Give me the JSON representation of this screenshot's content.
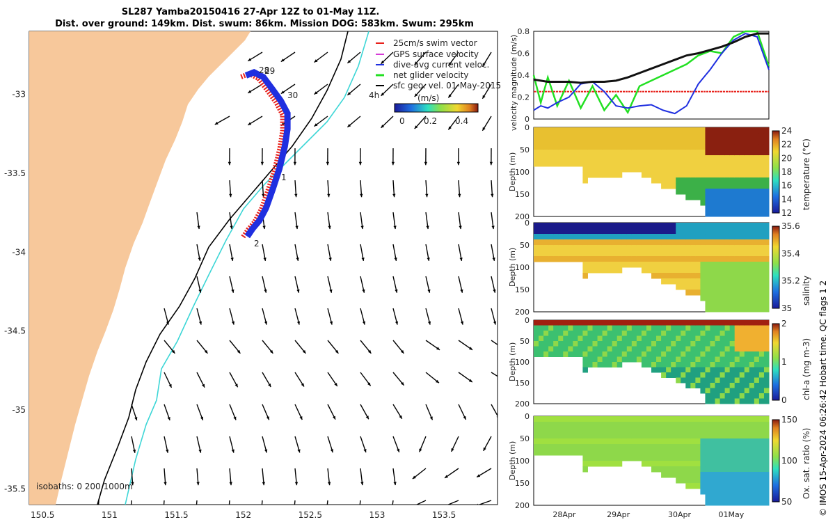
{
  "title_line1": "SL287 Yamba20150416 27-Apr 12Z to 01-May 11Z.",
  "title_line2": "Dist. over ground: 149km. Dist. swum: 86km. Mission DOG: 583km. Swum: 295km",
  "side_note": "© IMOS 15-Apr-2024 06:26:42 Hobart time. QC flags 1  2",
  "colors": {
    "land": "#f7c89b",
    "swim_vector": "#e8201a",
    "gps_velocity": "#d63ad6",
    "dive_current": "#1f2fe0",
    "net_velocity": "#22e022",
    "isobath_200": "#000000",
    "isobath_1000": "#3cd6d6"
  },
  "chart_data": [
    {
      "type": "map",
      "title": "SL287 Yamba20150416 27-Apr 12Z to 01-May 11Z.",
      "xlim": [
        150.4,
        153.9
      ],
      "ylim": [
        -35.6,
        -32.6
      ],
      "xticks": [
        "150.5",
        "151",
        "151.5",
        "152",
        "152.5",
        "153",
        "153.5"
      ],
      "yticks": [
        "-33",
        "-33.5",
        "-34",
        "-34.5",
        "-35",
        "-35.5"
      ],
      "legend": [
        "25cm/s swim vector",
        "GPS surface velocity",
        "dive-avg current veloc.",
        "net glider velocity",
        "sfc geo. vel. 01-May-2015"
      ],
      "colorbar": {
        "label": "(m/s)",
        "ticks": [
          "0",
          "0.2",
          "0.4"
        ]
      },
      "isobaths_label": "isobaths: 0   200  1000m",
      "track_labels": [
        "28",
        "29",
        "30",
        "1",
        "2"
      ],
      "scale_label": "4h",
      "track": {
        "lon": [
          152.02,
          152.08,
          152.15,
          152.22,
          152.28,
          152.33,
          152.33,
          152.31,
          152.27,
          152.22,
          152.17,
          152.12,
          152.07,
          152.03
        ],
        "lat": [
          -32.88,
          -32.86,
          -32.89,
          -32.97,
          -33.04,
          -33.12,
          -33.22,
          -33.33,
          -33.47,
          -33.6,
          -33.72,
          -33.8,
          -33.85,
          -33.9
        ]
      }
    },
    {
      "type": "line",
      "ylabel": "velocity magnitude (m/s)",
      "ylim": [
        0,
        0.8
      ],
      "yticks": [
        "0",
        "0.2",
        "0.4",
        "0.6",
        "0.8"
      ],
      "x": [
        0,
        0.03,
        0.06,
        0.1,
        0.15,
        0.2,
        0.25,
        0.3,
        0.35,
        0.4,
        0.45,
        0.5,
        0.55,
        0.6,
        0.65,
        0.7,
        0.75,
        0.8,
        0.85,
        0.9,
        0.95,
        1.0
      ],
      "series": [
        {
          "name": "swim",
          "values": [
            0.25,
            0.25,
            0.25,
            0.25,
            0.25,
            0.25,
            0.25,
            0.25,
            0.25,
            0.25,
            0.25,
            0.25,
            0.25,
            0.25,
            0.25,
            0.25,
            0.25,
            0.25,
            0.25,
            0.25,
            0.25,
            0.25
          ]
        },
        {
          "name": "net",
          "values": [
            0.4,
            0.15,
            0.38,
            0.12,
            0.35,
            0.1,
            0.3,
            0.08,
            0.22,
            0.06,
            0.3,
            0.35,
            0.4,
            0.45,
            0.5,
            0.58,
            0.62,
            0.6,
            0.75,
            0.8,
            0.8,
            0.48
          ]
        },
        {
          "name": "current",
          "values": [
            0.08,
            0.12,
            0.1,
            0.15,
            0.2,
            0.32,
            0.34,
            0.25,
            0.12,
            0.1,
            0.12,
            0.13,
            0.08,
            0.05,
            0.12,
            0.32,
            0.45,
            0.6,
            0.72,
            0.78,
            0.75,
            0.45
          ]
        },
        {
          "name": "geo",
          "values": [
            0.36,
            0.35,
            0.34,
            0.34,
            0.34,
            0.33,
            0.34,
            0.34,
            0.35,
            0.38,
            0.42,
            0.46,
            0.5,
            0.54,
            0.58,
            0.6,
            0.63,
            0.66,
            0.7,
            0.75,
            0.78,
            0.78
          ]
        }
      ]
    },
    {
      "type": "heatmap",
      "ylabel": "Depth (m)",
      "yticks": [
        "0",
        "50",
        "100",
        "150",
        "200"
      ],
      "colorbar_label": "temperature (°C)",
      "colorbar_ticks": [
        "12",
        "14",
        "16",
        "18",
        "20",
        "22",
        "24"
      ]
    },
    {
      "type": "heatmap",
      "ylabel": "Depth (m)",
      "yticks": [
        "0",
        "50",
        "100",
        "150",
        "200"
      ],
      "colorbar_label": "salinity",
      "colorbar_ticks": [
        "35",
        "35.2",
        "35.4",
        "35.6"
      ]
    },
    {
      "type": "heatmap",
      "ylabel": "Depth (m)",
      "yticks": [
        "0",
        "50",
        "100",
        "150",
        "200"
      ],
      "colorbar_label": "chl-a (mg m-3)",
      "colorbar_ticks": [
        "0",
        "1",
        "2"
      ]
    },
    {
      "type": "heatmap",
      "ylabel": "Depth (m)",
      "yticks": [
        "0",
        "50",
        "100",
        "150",
        "200"
      ],
      "colorbar_label": "Ox. sat. ratio (%)",
      "colorbar_ticks": [
        "50",
        "100",
        "150"
      ],
      "xticks": [
        "28Apr",
        "29Apr",
        "30Apr",
        "01May"
      ]
    }
  ]
}
